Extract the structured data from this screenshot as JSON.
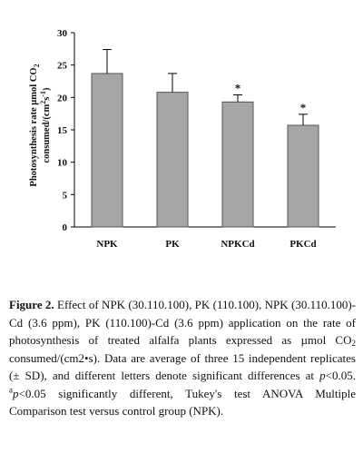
{
  "chart_data": {
    "type": "bar",
    "title": "",
    "xlabel": "",
    "ylabel": "Photosynthesis rate µmol CO2 consumed/(cm2s-1)",
    "ylabel_line1": "Photosynthesis rate µmol CO",
    "ylabel_line1_sub": "2",
    "ylabel_line2": "consumed/(cm",
    "ylabel_line2_sup1": "2",
    "ylabel_line2_mid": "s",
    "ylabel_line2_sup2": "-1",
    "ylabel_line2_end": ")",
    "ylim": [
      0,
      30
    ],
    "yticks": [
      0,
      5,
      10,
      15,
      20,
      25,
      30
    ],
    "grid": false,
    "legend": "none",
    "categories": [
      "NPK",
      "PK",
      "NPKCd",
      "PKCd"
    ],
    "values": [
      23.7,
      20.8,
      19.3,
      15.7
    ],
    "errors": [
      3.7,
      2.9,
      1.1,
      1.7
    ],
    "significance": [
      "",
      "",
      "*",
      "*"
    ],
    "bar_color": "#a6a6a6",
    "bar_edge_color": "#555555"
  },
  "caption": {
    "label": "Figure 2.",
    "p1": " Effect of NPK (30.110.100), PK (110.100), NPK (30.110.100)-Cd (3.6 ppm), PK (110.100)-Cd (3.6 ppm) application on the rate of photosynthesis of treated alfalfa plants expressed as µmol CO",
    "co2_sub": "2",
    "p2": " consumed/(cm2•s). Data are average of three 15 independent replicates (± SD), and different letters denote significant differences at ",
    "p_italic_1": "p",
    "p3": "<0.05. ",
    "sup_a": "a",
    "p_italic_2": "p",
    "p4": "<0.05 significantly different, Tukey's test ANOVA Multiple Comparison test versus control group (NPK)."
  }
}
